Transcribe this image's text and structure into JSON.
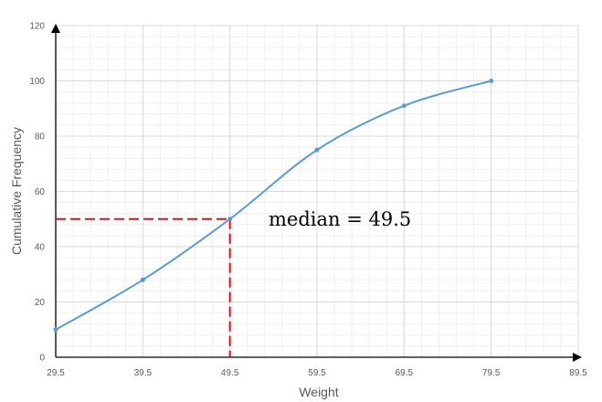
{
  "chart_data": {
    "type": "line",
    "title": "",
    "xlabel": "Weight",
    "ylabel": "Cumulative Frequency",
    "xlim": [
      29.5,
      89.5
    ],
    "ylim": [
      0,
      120
    ],
    "x_ticks": [
      "29.5",
      "39.5",
      "49.5",
      "59.5",
      "69.5",
      "79.5",
      "89.5"
    ],
    "y_ticks": [
      "0",
      "20",
      "40",
      "60",
      "80",
      "100",
      "120"
    ],
    "grid": true,
    "legend": "none",
    "series": [
      {
        "color": "#5b9bd5",
        "smooth": true,
        "markers": true,
        "points": [
          {
            "x": 29.5,
            "y": 10
          },
          {
            "x": 39.5,
            "y": 28
          },
          {
            "x": 49.5,
            "y": 50
          },
          {
            "x": 59.5,
            "y": 75
          },
          {
            "x": 69.5,
            "y": 91
          },
          {
            "x": 79.5,
            "y": 100
          }
        ]
      }
    ],
    "median_guide": {
      "x": 49.5,
      "y": 50,
      "color": "#e01010"
    },
    "annotation": "median = 49.5"
  }
}
